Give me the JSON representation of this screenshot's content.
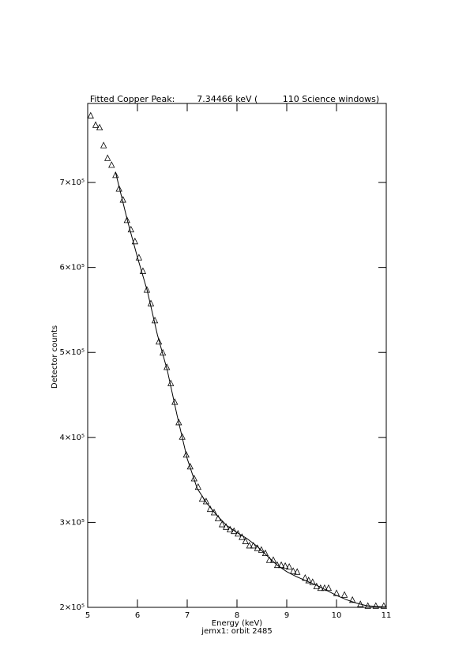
{
  "chart_data": {
    "type": "scatter",
    "title": "Fitted Copper Peak:        7.34466 keV (         110 Science windows)",
    "x_label": "Energy (keV)",
    "subtitle": "jemx1: orbit 2485",
    "y_label": "Detector counts",
    "xlim": [
      5,
      11
    ],
    "xticks": [
      5,
      6,
      7,
      8,
      9,
      10,
      11
    ],
    "ylim": [
      200000,
      793000
    ],
    "yticks": [
      {
        "value": 200000,
        "label": "2×10⁵"
      },
      {
        "value": 300000,
        "label": "3×10⁵"
      },
      {
        "value": 400000,
        "label": "4×10⁵"
      },
      {
        "value": 500000,
        "label": "5×10⁵"
      },
      {
        "value": 600000,
        "label": "6×10⁵"
      },
      {
        "value": 700000,
        "label": "7×10⁵"
      }
    ],
    "series": [
      {
        "style": "triangle",
        "color": "#000000",
        "x": [
          5.06,
          5.16,
          5.24,
          5.32,
          5.4,
          5.48,
          5.56,
          5.63,
          5.71,
          5.79,
          5.87,
          5.95,
          6.03,
          6.11,
          6.19,
          6.27,
          6.35,
          6.43,
          6.51,
          6.59,
          6.67,
          6.75,
          6.83,
          6.9,
          6.98,
          7.06,
          7.14,
          7.22,
          7.3,
          7.38,
          7.46,
          7.54,
          7.62,
          7.7,
          7.78,
          7.86,
          7.94,
          8.02,
          8.1,
          8.17,
          8.25,
          8.33,
          8.41,
          8.49,
          8.57,
          8.65,
          8.73,
          8.81,
          8.89,
          8.97,
          9.05,
          9.13,
          9.21,
          9.37,
          9.44,
          9.52,
          9.6,
          9.68,
          9.76,
          9.84,
          10.0,
          10.16,
          10.32,
          10.48,
          10.63,
          10.79,
          10.95
        ],
        "values": [
          779000,
          768000,
          765000,
          744000,
          729000,
          721000,
          709000,
          693000,
          680000,
          656000,
          645000,
          631000,
          612000,
          596000,
          574000,
          558000,
          538000,
          513000,
          500000,
          483000,
          464000,
          442000,
          418000,
          401000,
          380000,
          366000,
          352000,
          342000,
          328000,
          325000,
          316000,
          312000,
          305000,
          298000,
          295000,
          292000,
          290000,
          287000,
          283000,
          278000,
          273000,
          273000,
          270000,
          268000,
          264000,
          256000,
          256000,
          250000,
          250000,
          249000,
          248000,
          243000,
          242000,
          235000,
          232000,
          230000,
          225000,
          223000,
          223000,
          223000,
          217000,
          215000,
          209000,
          204000,
          202000,
          202000,
          202000
        ]
      },
      {
        "style": "line",
        "color": "#000000",
        "x": [
          5.56,
          5.8,
          6.0,
          6.2,
          6.4,
          6.6,
          6.8,
          7.0,
          7.2,
          7.4,
          7.6,
          7.8,
          8.0,
          8.2,
          8.4,
          8.6,
          8.8,
          9.0,
          9.2,
          9.4,
          9.6,
          9.8,
          10.0,
          10.2,
          10.4,
          10.6,
          10.8,
          11.0
        ],
        "values": [
          712000,
          655000,
          612000,
          572000,
          521000,
          479000,
          425000,
          375000,
          340000,
          322000,
          308000,
          296000,
          288000,
          281000,
          272000,
          261000,
          250000,
          242000,
          236000,
          231000,
          226000,
          220000,
          214000,
          209000,
          205000,
          202000,
          201000,
          200500
        ]
      }
    ]
  }
}
